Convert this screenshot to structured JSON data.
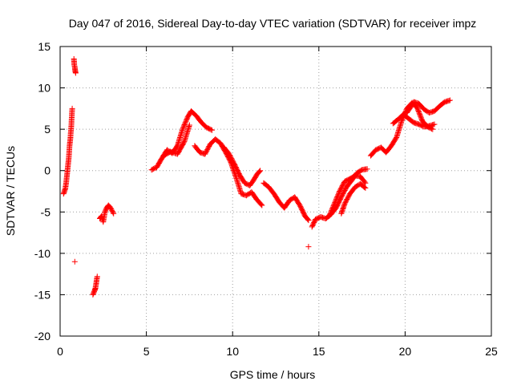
{
  "chart_data": {
    "type": "scatter",
    "title": "Day 047 of 2016, Sidereal Day-to-day VTEC variation (SDTVAR) for receiver impz",
    "xlabel": "GPS time / hours",
    "ylabel": "SDTVAR / TECUs",
    "xlim": [
      0,
      25
    ],
    "ylim": [
      -20,
      15
    ],
    "xticks": [
      0,
      5,
      10,
      15,
      20,
      25
    ],
    "yticks": [
      -20,
      -15,
      -10,
      -5,
      0,
      5,
      10,
      15
    ],
    "xtick_labels": [
      "0",
      "5",
      "10",
      "15",
      "20",
      "25"
    ],
    "ytick_labels": [
      "-20",
      "-15",
      "-10",
      "-5",
      "0",
      "5",
      "10",
      "15"
    ],
    "grid": true,
    "marker": "+",
    "color": "#ff0000",
    "series": [
      {
        "name": "a1",
        "x": [
          0.2,
          0.3,
          0.35,
          0.4,
          0.45,
          0.5,
          0.55,
          0.6,
          0.65,
          0.7
        ],
        "y": [
          -2.8,
          -2.2,
          -1.5,
          -0.5,
          0.5,
          1.5,
          3.0,
          4.0,
          5.5,
          7.5
        ]
      },
      {
        "name": "a2",
        "x": [
          0.8,
          0.82,
          0.85,
          0.88,
          0.9
        ],
        "y": [
          13.5,
          12.8,
          12.5,
          12.0,
          11.8
        ]
      },
      {
        "name": "a3",
        "x": [
          0.85
        ],
        "y": [
          -11.0
        ]
      },
      {
        "name": "b1",
        "x": [
          1.9,
          2.0,
          2.05,
          2.1,
          2.15
        ],
        "y": [
          -15.0,
          -14.5,
          -14.2,
          -13.5,
          -12.8
        ]
      },
      {
        "name": "b2",
        "x": [
          2.3,
          2.4,
          2.5,
          2.6,
          2.7,
          2.8,
          2.9,
          3.0,
          3.1
        ],
        "y": [
          -5.8,
          -5.5,
          -6.2,
          -5.0,
          -4.5,
          -4.2,
          -4.4,
          -4.8,
          -5.2
        ]
      },
      {
        "name": "c1",
        "x": [
          5.3,
          5.6,
          5.9,
          6.2,
          6.5,
          6.8,
          7.1,
          7.4,
          7.6,
          7.9,
          8.2,
          8.5,
          8.8
        ],
        "y": [
          0.1,
          0.4,
          1.5,
          2.5,
          2.1,
          3.0,
          5.0,
          6.5,
          7.2,
          6.6,
          5.8,
          5.2,
          4.9
        ]
      },
      {
        "name": "c2",
        "x": [
          6.0,
          6.4,
          6.8,
          7.2,
          7.5
        ],
        "y": [
          1.8,
          2.3,
          2.0,
          3.5,
          5.5
        ]
      },
      {
        "name": "c3",
        "x": [
          7.8,
          8.1,
          8.4,
          8.7,
          9.0,
          9.3,
          9.6,
          9.9,
          10.2,
          10.5,
          10.8,
          11.1,
          11.4,
          11.7
        ],
        "y": [
          3.0,
          2.2,
          2.0,
          3.2,
          3.8,
          3.3,
          2.2,
          1.0,
          -0.8,
          -2.8,
          -3.0,
          -2.6,
          -3.5,
          -4.2
        ]
      },
      {
        "name": "c4",
        "x": [
          9.5,
          9.8,
          10.1,
          10.4,
          10.7,
          11.0,
          11.2,
          11.4,
          11.6
        ],
        "y": [
          2.8,
          2.0,
          0.8,
          -0.5,
          -1.5,
          -1.8,
          -1.2,
          -0.5,
          0.0
        ]
      },
      {
        "name": "c5",
        "x": [
          11.8,
          12.1,
          12.4,
          12.7,
          13.0,
          13.3,
          13.6,
          13.9,
          14.2,
          14.4
        ],
        "y": [
          -1.5,
          -2.0,
          -2.8,
          -3.8,
          -4.5,
          -3.6,
          -3.2,
          -4.2,
          -5.5,
          -6.0
        ]
      },
      {
        "name": "c6",
        "x": [
          14.4
        ],
        "y": [
          -9.2
        ]
      },
      {
        "name": "d1",
        "x": [
          14.6,
          14.8,
          15.1,
          15.4,
          15.7,
          16.0,
          16.3,
          16.6,
          16.9,
          17.2,
          17.5,
          17.8
        ],
        "y": [
          -6.8,
          -5.9,
          -5.6,
          -5.8,
          -5.3,
          -4.5,
          -3.2,
          -2.0,
          -1.2,
          -0.3,
          0.1,
          0.2
        ]
      },
      {
        "name": "d2",
        "x": [
          15.6,
          15.9,
          16.2,
          16.5,
          16.8,
          17.1,
          17.4,
          17.7
        ],
        "y": [
          -5.5,
          -4.0,
          -2.5,
          -1.3,
          -1.0,
          -0.6,
          -0.7,
          -1.5
        ]
      },
      {
        "name": "d3",
        "x": [
          16.3,
          16.5,
          16.8,
          17.1,
          17.4,
          17.7
        ],
        "y": [
          -5.2,
          -4.0,
          -2.8,
          -2.0,
          -1.6,
          -2.1
        ]
      },
      {
        "name": "e1",
        "x": [
          18.0,
          18.3,
          18.6,
          18.9,
          19.2,
          19.5,
          19.8,
          20.1,
          20.4,
          20.7,
          21.0,
          21.3,
          21.6
        ],
        "y": [
          1.8,
          2.5,
          2.8,
          2.2,
          3.0,
          4.0,
          6.0,
          7.5,
          8.2,
          7.6,
          6.0,
          5.3,
          5.0
        ]
      },
      {
        "name": "e2",
        "x": [
          19.3,
          19.6,
          19.9,
          20.2,
          20.5,
          20.8,
          21.1,
          21.4,
          21.7
        ],
        "y": [
          5.7,
          6.2,
          6.8,
          6.3,
          5.8,
          5.6,
          5.3,
          5.4,
          5.6
        ]
      },
      {
        "name": "e3",
        "x": [
          20.1,
          20.3,
          20.5,
          20.8,
          21.1,
          21.4,
          21.7,
          22.0,
          22.3,
          22.6
        ],
        "y": [
          7.0,
          7.6,
          8.3,
          8.1,
          7.4,
          7.0,
          7.2,
          7.8,
          8.3,
          8.5
        ]
      }
    ]
  }
}
